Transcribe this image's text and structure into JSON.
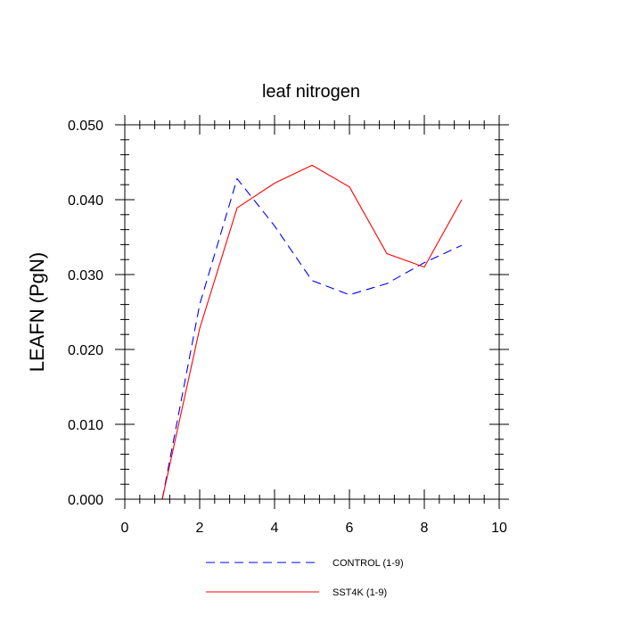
{
  "chart_data": {
    "type": "line",
    "title": "leaf nitrogen",
    "xlabel": "",
    "ylabel": "LEAFN  (PgN)",
    "xlim": [
      0,
      10
    ],
    "ylim": [
      0,
      0.05
    ],
    "x_ticks": [
      0,
      2,
      4,
      6,
      8,
      10
    ],
    "x_tick_labels": [
      "0",
      "2",
      "4",
      "6",
      "8",
      "10"
    ],
    "y_ticks": [
      0,
      0.01,
      0.02,
      0.03,
      0.04,
      0.05
    ],
    "y_tick_labels": [
      "0.000",
      "0.010",
      "0.020",
      "0.030",
      "0.040",
      "0.050"
    ],
    "grid": false,
    "legend_position": "bottom",
    "series": [
      {
        "name": "CONTROL (1-9)",
        "color": "#0000ff",
        "dash": "dashed",
        "x": [
          1,
          2,
          3,
          4,
          5,
          6,
          7,
          8,
          9
        ],
        "values": [
          0.0,
          0.026,
          0.0428,
          0.0365,
          0.0292,
          0.0273,
          0.0288,
          0.0316,
          0.0339
        ]
      },
      {
        "name": "SST4K (1-9)",
        "color": "#ff0000",
        "dash": "solid",
        "x": [
          1,
          2,
          3,
          4,
          5,
          6,
          7,
          8,
          9
        ],
        "values": [
          0.0,
          0.0228,
          0.0389,
          0.0422,
          0.0446,
          0.0417,
          0.0328,
          0.031,
          0.04
        ]
      }
    ]
  }
}
